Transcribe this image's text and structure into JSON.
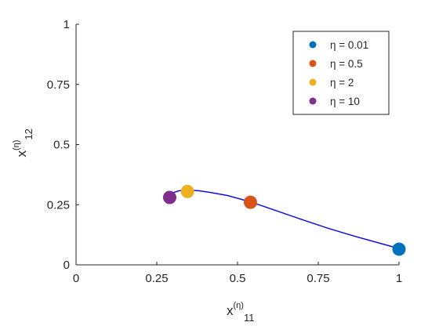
{
  "chart_data": {
    "type": "scatter",
    "title": "",
    "xlabel": {
      "base": "x",
      "sup": "(η)",
      "sub": "11"
    },
    "ylabel": {
      "base": "x",
      "sup": "(η)",
      "sub": "12"
    },
    "xlim": [
      0,
      1
    ],
    "ylim": [
      0,
      1
    ],
    "xticks": [
      "0",
      "0.25",
      "0.5",
      "0.75",
      "1"
    ],
    "yticks": [
      "0",
      "0.25",
      "0.5",
      "0.75",
      "1"
    ],
    "grid": false,
    "legend_position": "top-right",
    "curve": {
      "color": "#1010d8",
      "x": [
        0.29,
        0.3,
        0.32,
        0.35,
        0.38,
        0.42,
        0.47,
        0.54,
        0.62,
        0.7,
        0.78,
        0.86,
        0.94,
        1.0
      ],
      "y": [
        0.285,
        0.3,
        0.308,
        0.31,
        0.308,
        0.3,
        0.288,
        0.262,
        0.225,
        0.188,
        0.152,
        0.12,
        0.09,
        0.068
      ]
    },
    "series": [
      {
        "name": "η = 0.01",
        "color": "#0072bd",
        "x": [
          1.0
        ],
        "y": [
          0.065
        ]
      },
      {
        "name": "η = 0.5",
        "color": "#d95319",
        "x": [
          0.54
        ],
        "y": [
          0.26
        ]
      },
      {
        "name": "η = 2",
        "color": "#edb120",
        "x": [
          0.345
        ],
        "y": [
          0.305
        ]
      },
      {
        "name": "η = 10",
        "color": "#7e2f8e",
        "x": [
          0.29
        ],
        "y": [
          0.28
        ]
      }
    ]
  }
}
